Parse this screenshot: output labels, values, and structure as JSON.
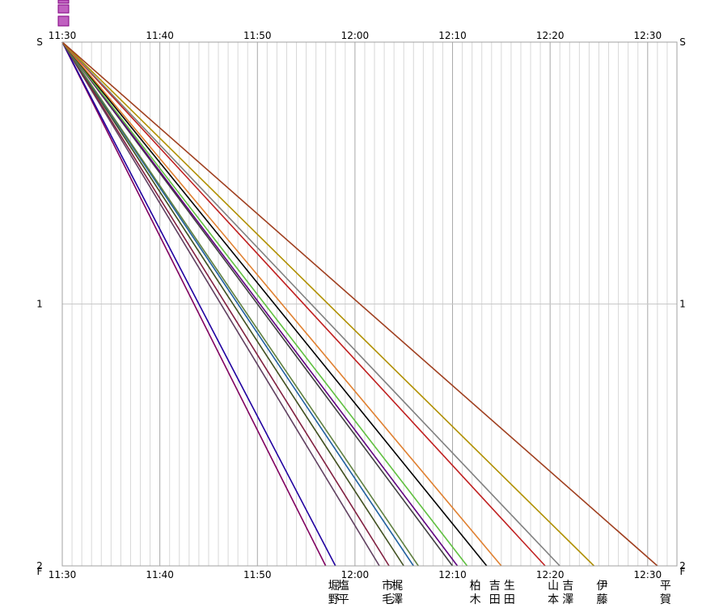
{
  "chart_data": {
    "type": "line",
    "title": "",
    "x_ticks": [
      "11:30",
      "11:40",
      "11:50",
      "12:00",
      "12:10",
      "12:20",
      "12:30"
    ],
    "x_range": [
      "11:30",
      "12:33"
    ],
    "y_ticks": [
      {
        "value": 0,
        "label": "S"
      },
      {
        "value": 1,
        "label": "1"
      },
      {
        "value": 2,
        "label": "2"
      }
    ],
    "finish_marker": "F",
    "y_range": [
      0,
      2
    ],
    "y_inverted": true,
    "grid": true,
    "series": [
      {
        "name": "堀野",
        "color": "#800060",
        "x": [
          "11:30",
          "11:57"
        ],
        "y": [
          0,
          2
        ]
      },
      {
        "name": "塩平",
        "color": "#2000a0",
        "x": [
          "11:30",
          "11:58"
        ],
        "y": [
          0,
          2
        ]
      },
      {
        "name": "市毛",
        "color": "#604060",
        "x": [
          "11:30",
          "12:02.5"
        ],
        "y": [
          0,
          2
        ]
      },
      {
        "name": "梶澤",
        "color": "#802040",
        "x": [
          "11:30",
          "12:03.5"
        ],
        "y": [
          0,
          2
        ]
      },
      {
        "name": "",
        "color": "#405020",
        "x": [
          "11:30",
          "12:05"
        ],
        "y": [
          0,
          2
        ]
      },
      {
        "name": "",
        "color": "#2060a0",
        "x": [
          "11:30",
          "12:06"
        ],
        "y": [
          0,
          2
        ]
      },
      {
        "name": "",
        "color": "#608040",
        "x": [
          "11:30",
          "12:06.5"
        ],
        "y": [
          0,
          2
        ]
      },
      {
        "name": "",
        "color": "#404040",
        "x": [
          "11:30",
          "12:10"
        ],
        "y": [
          0,
          2
        ]
      },
      {
        "name": "",
        "color": "#600080",
        "x": [
          "11:30",
          "12:10.5"
        ],
        "y": [
          0,
          2
        ]
      },
      {
        "name": "柏木",
        "color": "#60c040",
        "x": [
          "11:30",
          "12:11.5"
        ],
        "y": [
          0,
          2
        ]
      },
      {
        "name": "吉田",
        "color": "#000000",
        "x": [
          "11:30",
          "12:13.5"
        ],
        "y": [
          0,
          2
        ]
      },
      {
        "name": "生田",
        "color": "#e08030",
        "x": [
          "11:30",
          "12:15"
        ],
        "y": [
          0,
          2
        ]
      },
      {
        "name": "山本",
        "color": "#c02020",
        "x": [
          "11:30",
          "12:19.5"
        ],
        "y": [
          0,
          2
        ]
      },
      {
        "name": "吉澤",
        "color": "#808080",
        "x": [
          "11:30",
          "12:21"
        ],
        "y": [
          0,
          2
        ]
      },
      {
        "name": "伊藤",
        "color": "#b09000",
        "x": [
          "11:30",
          "12:24.5"
        ],
        "y": [
          0,
          2
        ]
      },
      {
        "name": "平賀",
        "color": "#a04020",
        "x": [
          "11:30",
          "12:31"
        ],
        "y": [
          0,
          2
        ]
      }
    ],
    "legend_placement": "bottom",
    "legend_labels": [
      {
        "series": 0,
        "text": "堀野"
      },
      {
        "series": 1,
        "text": "塩平"
      },
      {
        "series": 2,
        "text": "市毛"
      },
      {
        "series": 3,
        "text": "梶澤"
      },
      {
        "series": 9,
        "text": "柏木"
      },
      {
        "series": 10,
        "text": "吉田"
      },
      {
        "series": 11,
        "text": "生田"
      },
      {
        "series": 12,
        "text": "山本"
      },
      {
        "series": 13,
        "text": "吉澤"
      },
      {
        "series": 14,
        "text": "伊藤"
      },
      {
        "series": 15,
        "text": "平賀"
      }
    ]
  }
}
